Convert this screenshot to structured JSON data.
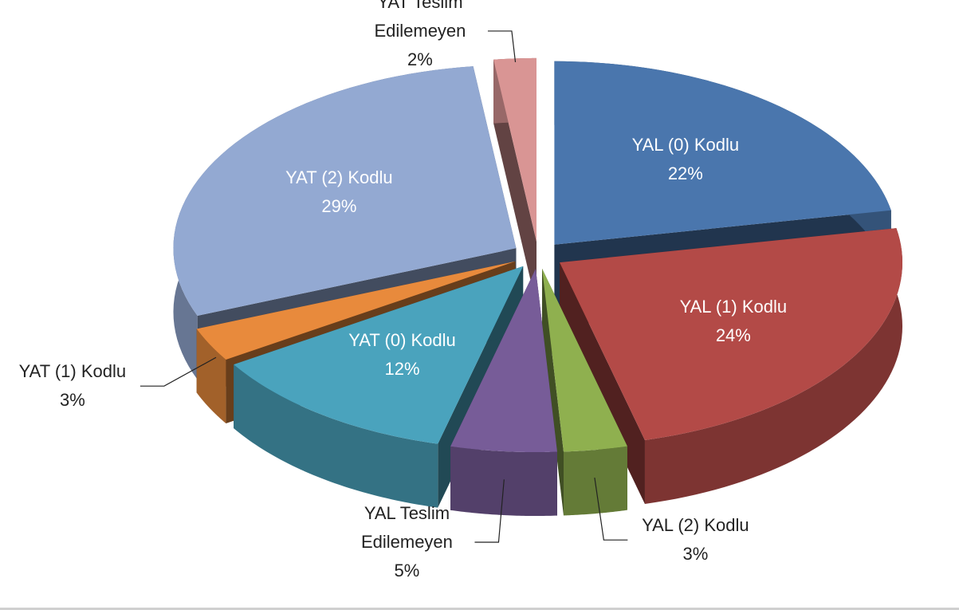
{
  "chart_data": {
    "type": "pie3d",
    "categories": [
      "YAL (0) Kodlu",
      "YAL (1) Kodlu",
      "YAL (2) Kodlu",
      "YAL Teslim Edilemeyen",
      "YAT (0) Kodlu",
      "YAT (1) Kodlu",
      "YAT (2) Kodlu",
      "YAT Teslim Edilemeyen"
    ],
    "values": [
      22,
      24,
      3,
      5,
      12,
      3,
      29,
      2
    ],
    "value_labels": [
      "22%",
      "24%",
      "3%",
      "5%",
      "12%",
      "3%",
      "29%",
      "2%"
    ],
    "colors": [
      "#4a76ad",
      "#b34a47",
      "#8fb04f",
      "#775c98",
      "#4aa3bd",
      "#e88a3c",
      "#93a9d2",
      "#d99594"
    ]
  }
}
